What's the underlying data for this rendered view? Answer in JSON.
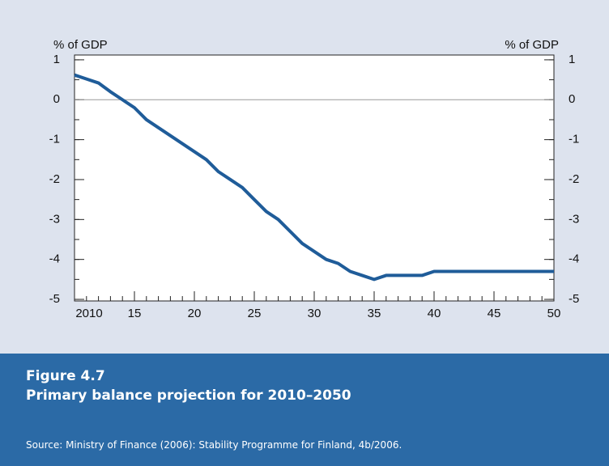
{
  "chart_data": {
    "type": "line",
    "figure_label": "Figure 4.7",
    "title": "Primary balance projection for 2010–2050",
    "source": "Source: Ministry of Finance (2006): Stability Programme for Finland, 4b/2006.",
    "y_label": "% of GDP",
    "y2_label": "% of GDP",
    "x": [
      2010,
      2011,
      2012,
      2013,
      2014,
      2015,
      2016,
      2017,
      2018,
      2019,
      2020,
      2021,
      2022,
      2023,
      2024,
      2025,
      2026,
      2027,
      2028,
      2029,
      2030,
      2031,
      2032,
      2033,
      2034,
      2035,
      2036,
      2037,
      2038,
      2039,
      2040,
      2041,
      2042,
      2043,
      2044,
      2045,
      2046,
      2047,
      2048,
      2049,
      2050
    ],
    "series": [
      {
        "name": "Primary balance",
        "color": "#1f5c99",
        "values": [
          0.62,
          0.52,
          0.42,
          0.2,
          0.0,
          -0.2,
          -0.5,
          -0.7,
          -0.9,
          -1.1,
          -1.3,
          -1.5,
          -1.8,
          -2.0,
          -2.2,
          -2.5,
          -2.8,
          -3.0,
          -3.3,
          -3.6,
          -3.8,
          -4.0,
          -4.1,
          -4.3,
          -4.4,
          -4.5,
          -4.4,
          -4.4,
          -4.4,
          -4.4,
          -4.3,
          -4.3,
          -4.3,
          -4.3,
          -4.3,
          -4.3,
          -4.3,
          -4.3,
          -4.3,
          -4.3,
          -4.3
        ]
      }
    ],
    "xlim": [
      2010,
      2050
    ],
    "xticks": [
      2010,
      {
        "value": 2015,
        "label": "15"
      },
      {
        "value": 2020,
        "label": "20"
      },
      {
        "value": 2025,
        "label": "25"
      },
      {
        "value": 2030,
        "label": "30"
      },
      {
        "value": 2035,
        "label": "35"
      },
      {
        "value": 2040,
        "label": "40"
      },
      {
        "value": 2045,
        "label": "45"
      },
      {
        "value": 2050,
        "label": "50"
      }
    ],
    "ylim": [
      -5.04,
      1.12
    ],
    "yticks": [
      1,
      0,
      -1,
      -2,
      -3,
      -4,
      -5
    ]
  }
}
